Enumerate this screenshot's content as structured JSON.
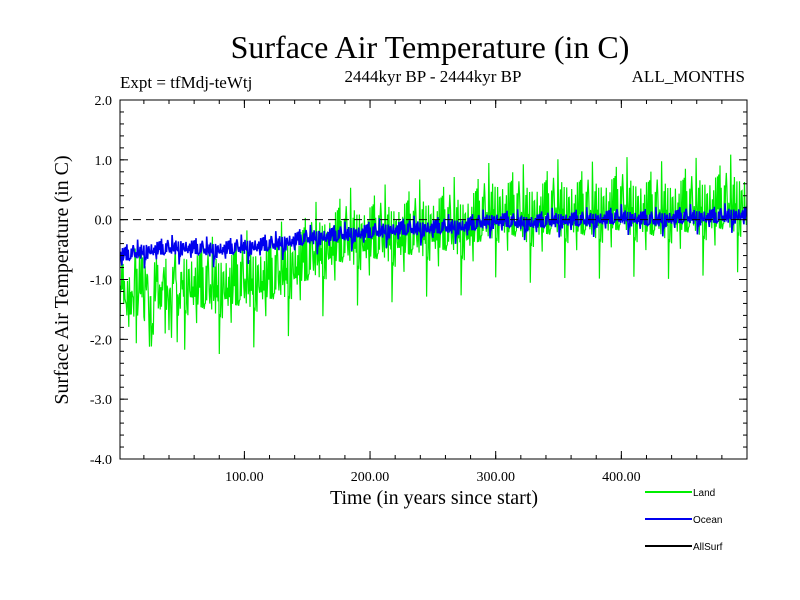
{
  "chart_data": {
    "type": "line",
    "title": "Surface Air Temperature (in C)",
    "subtitle_left": "Expt = tfMdj-teWtj",
    "subtitle_center": "2444kyr BP - 2444kyr BP",
    "subtitle_right": "ALL_MONTHS",
    "xlabel": "Time (in years since start)",
    "ylabel": "Surface Air Temperature (in C)",
    "xlim": [
      1,
      500
    ],
    "ylim": [
      -4.0,
      2.0
    ],
    "x_ticks": [
      100,
      200,
      300,
      400
    ],
    "x_tick_labels": [
      "100.00",
      "200.00",
      "300.00",
      "400.00"
    ],
    "y_ticks": [
      -4.0,
      -3.0,
      -2.0,
      -1.0,
      0.0,
      1.0,
      2.0
    ],
    "y_tick_labels": [
      "-4.0",
      "-3.0",
      "-2.0",
      "-1.0",
      "0.0",
      "1.0",
      "2.0"
    ],
    "reference_line": {
      "y": 0.0,
      "style": "dashed"
    },
    "series": [
      {
        "name": "Land",
        "color": "#00ee00",
        "x": [
          1,
          25,
          50,
          75,
          100,
          125,
          150,
          175,
          200,
          225,
          250,
          275,
          300,
          325,
          350,
          375,
          400,
          425,
          450,
          475,
          500
        ],
        "values": [
          -1.1,
          -1.3,
          -1.2,
          -1.3,
          -1.2,
          -1.1,
          -0.8,
          -0.5,
          -0.45,
          -0.4,
          -0.3,
          -0.3,
          0.0,
          -0.1,
          0.0,
          -0.05,
          0.05,
          -0.05,
          0.0,
          0.05,
          0.1
        ]
      },
      {
        "name": "Ocean",
        "color": "#0000ee",
        "x": [
          1,
          25,
          50,
          75,
          100,
          125,
          150,
          175,
          200,
          225,
          250,
          275,
          300,
          325,
          350,
          375,
          400,
          425,
          450,
          475,
          500
        ],
        "values": [
          -0.65,
          -0.55,
          -0.5,
          -0.55,
          -0.5,
          -0.45,
          -0.35,
          -0.3,
          -0.25,
          -0.2,
          -0.18,
          -0.15,
          -0.05,
          -0.1,
          -0.05,
          -0.05,
          0.0,
          -0.05,
          0.0,
          0.0,
          0.05
        ]
      },
      {
        "name": "AllSurf",
        "color": "#000000",
        "x": [],
        "values": []
      }
    ],
    "legend_position": "bottom-right"
  }
}
